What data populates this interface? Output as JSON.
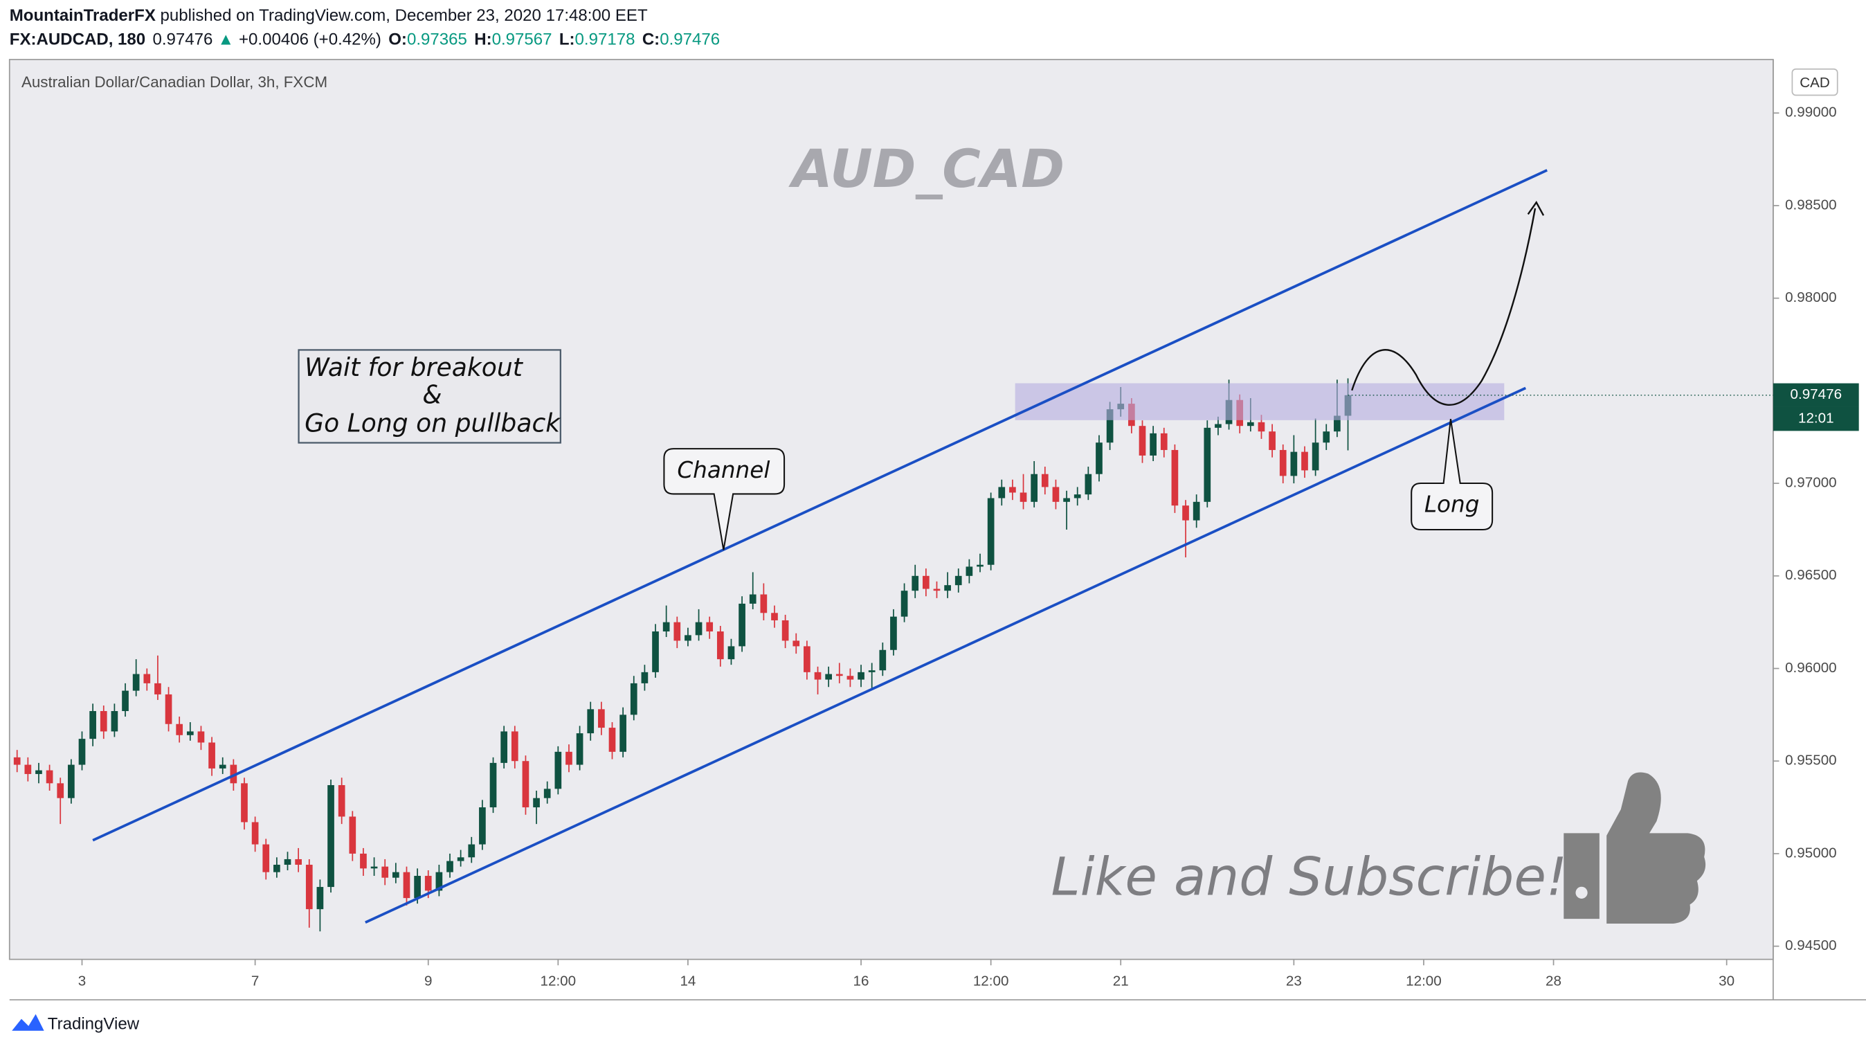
{
  "header": {
    "author": "MountainTraderFX",
    "published": " published on TradingView.com, December 23, 2020 17:48:00 EET",
    "symbol": "FX:AUDCAD, 180",
    "arrow": "▲",
    "change": "+0.00406 (+0.42%)",
    "o": "O:",
    "h": "H:",
    "l": "L:",
    "c": "C:"
  },
  "chart_data": {
    "type": "candlestick",
    "title": "Australian Dollar/Canadian Dollar, 3h, FXCM",
    "currency": "CAD",
    "countdown": "12:01",
    "up_color": "#0f5241",
    "down_color": "#d9363e",
    "grid": false,
    "xlim": [
      -0.7,
      162.3
    ],
    "xticks": [
      {
        "value": 6,
        "label": "3"
      },
      {
        "value": 22,
        "label": "7"
      },
      {
        "value": 38,
        "label": "9"
      },
      {
        "value": 50,
        "label": "12:00"
      },
      {
        "value": 62,
        "label": "14"
      },
      {
        "value": 78,
        "label": "16"
      },
      {
        "value": 90,
        "label": "12:00"
      },
      {
        "value": 102,
        "label": "21"
      },
      {
        "value": 118,
        "label": "23"
      },
      {
        "value": 130,
        "label": "12:00"
      },
      {
        "value": 142,
        "label": "28"
      },
      {
        "value": 158,
        "label": "30"
      }
    ],
    "ylim": [
      0.94429,
      0.99289
    ],
    "yticks": [
      {
        "value": 0.945,
        "label": "0.94500"
      },
      {
        "value": 0.95,
        "label": "0.95000"
      },
      {
        "value": 0.955,
        "label": "0.95500"
      },
      {
        "value": 0.96,
        "label": "0.96000"
      },
      {
        "value": 0.965,
        "label": "0.96500"
      },
      {
        "value": 0.97,
        "label": "0.97000"
      },
      {
        "value": 0.975,
        "label": "0.97500"
      },
      {
        "value": 0.98,
        "label": "0.98000"
      },
      {
        "value": 0.985,
        "label": "0.98500"
      },
      {
        "value": 0.99,
        "label": "0.99000"
      }
    ],
    "x": [
      0,
      1,
      2,
      3,
      4,
      5,
      6,
      7,
      8,
      9,
      10,
      11,
      12,
      13,
      14,
      15,
      16,
      17,
      18,
      19,
      20,
      21,
      22,
      23,
      24,
      25,
      26,
      27,
      28,
      29,
      30,
      31,
      32,
      33,
      34,
      35,
      36,
      37,
      38,
      39,
      40,
      41,
      42,
      43,
      44,
      45,
      46,
      47,
      48,
      49,
      50,
      51,
      52,
      53,
      54,
      55,
      56,
      57,
      58,
      59,
      60,
      61,
      62,
      63,
      64,
      65,
      66,
      67,
      68,
      69,
      70,
      71,
      72,
      73,
      74,
      75,
      76,
      77,
      78,
      79,
      80,
      81,
      82,
      83,
      84,
      85,
      86,
      87,
      88,
      89,
      90,
      91,
      92,
      93,
      94,
      95,
      96,
      97,
      98,
      99,
      100,
      101,
      102,
      103,
      104,
      105,
      106,
      107,
      108,
      109,
      110,
      111,
      112,
      113,
      114,
      115,
      116,
      117,
      118,
      119,
      120,
      121,
      122,
      123
    ],
    "open": [
      0.9552,
      0.9548,
      0.9543,
      0.9545,
      0.9538,
      0.953,
      0.9548,
      0.9562,
      0.9577,
      0.9566,
      0.9577,
      0.9588,
      0.9597,
      0.9592,
      0.9586,
      0.957,
      0.9564,
      0.9566,
      0.956,
      0.9546,
      0.9548,
      0.9538,
      0.9517,
      0.9505,
      0.949,
      0.9494,
      0.9497,
      0.9494,
      0.947,
      0.9482,
      0.9537,
      0.952,
      0.95,
      0.9492,
      0.9493,
      0.9487,
      0.949,
      0.9476,
      0.9488,
      0.948,
      0.949,
      0.9496,
      0.9498,
      0.9505,
      0.9525,
      0.9549,
      0.9566,
      0.955,
      0.9525,
      0.953,
      0.9535,
      0.9555,
      0.9548,
      0.9565,
      0.9578,
      0.9568,
      0.9555,
      0.9575,
      0.9592,
      0.9598,
      0.962,
      0.9625,
      0.9615,
      0.9618,
      0.9625,
      0.962,
      0.9605,
      0.9612,
      0.9635,
      0.964,
      0.963,
      0.9626,
      0.9615,
      0.9612,
      0.9598,
      0.9594,
      0.9597,
      0.9596,
      0.9594,
      0.9598,
      0.9599,
      0.961,
      0.9628,
      0.9642,
      0.965,
      0.9643,
      0.9642,
      0.9645,
      0.965,
      0.9655,
      0.9656,
      0.9692,
      0.9698,
      0.9695,
      0.969,
      0.9705,
      0.9698,
      0.969,
      0.9692,
      0.9694,
      0.9705,
      0.9722,
      0.974,
      0.9743,
      0.9731,
      0.9715,
      0.9727,
      0.9718,
      0.9688,
      0.968,
      0.969,
      0.973,
      0.9732,
      0.9745,
      0.9731,
      0.9733,
      0.9728,
      0.9718,
      0.9704,
      0.9717,
      0.9707,
      0.9722,
      0.9728,
      0.97365
    ],
    "high": [
      0.9556,
      0.9552,
      0.9549,
      0.9548,
      0.9541,
      0.9551,
      0.9566,
      0.9581,
      0.958,
      0.9581,
      0.9592,
      0.9605,
      0.96,
      0.9607,
      0.959,
      0.9574,
      0.9571,
      0.9569,
      0.9563,
      0.9552,
      0.9551,
      0.9541,
      0.952,
      0.9508,
      0.9498,
      0.9501,
      0.9503,
      0.9497,
      0.9486,
      0.954,
      0.9541,
      0.9523,
      0.9503,
      0.9498,
      0.9497,
      0.9495,
      0.9493,
      0.9492,
      0.9491,
      0.9494,
      0.95,
      0.9502,
      0.9509,
      0.9529,
      0.9552,
      0.9569,
      0.9569,
      0.9553,
      0.9534,
      0.9539,
      0.9558,
      0.9559,
      0.9569,
      0.9582,
      0.9582,
      0.9571,
      0.9579,
      0.9596,
      0.9602,
      0.9624,
      0.9634,
      0.9628,
      0.9622,
      0.9632,
      0.9628,
      0.9623,
      0.9616,
      0.9639,
      0.9652,
      0.9646,
      0.9634,
      0.9629,
      0.9619,
      0.9615,
      0.9601,
      0.9601,
      0.9603,
      0.96,
      0.9602,
      0.9603,
      0.9614,
      0.9632,
      0.9646,
      0.9656,
      0.9654,
      0.9647,
      0.9652,
      0.9654,
      0.9659,
      0.9662,
      0.9695,
      0.9702,
      0.9702,
      0.9705,
      0.9712,
      0.9709,
      0.9702,
      0.9696,
      0.9698,
      0.9709,
      0.9726,
      0.9744,
      0.9752,
      0.9746,
      0.9734,
      0.9731,
      0.973,
      0.9721,
      0.9691,
      0.9694,
      0.9734,
      0.9736,
      0.9756,
      0.9748,
      0.9746,
      0.9737,
      0.9732,
      0.9721,
      0.9726,
      0.972,
      0.9735,
      0.9732,
      0.9756,
      0.97567
    ],
    "low": [
      0.9544,
      0.9539,
      0.9538,
      0.9534,
      0.9516,
      0.9527,
      0.9545,
      0.9558,
      0.9562,
      0.9563,
      0.9574,
      0.9585,
      0.9588,
      0.9583,
      0.9566,
      0.956,
      0.9561,
      0.9556,
      0.9542,
      0.9543,
      0.9534,
      0.9513,
      0.9501,
      0.9486,
      0.9487,
      0.9491,
      0.949,
      0.946,
      0.9458,
      0.9479,
      0.9516,
      0.9496,
      0.9488,
      0.9488,
      0.9483,
      0.9484,
      0.9472,
      0.9473,
      0.9476,
      0.9477,
      0.9487,
      0.9493,
      0.9495,
      0.9502,
      0.9522,
      0.9546,
      0.9546,
      0.9521,
      0.9516,
      0.9527,
      0.9532,
      0.9544,
      0.9545,
      0.9561,
      0.9564,
      0.9551,
      0.9552,
      0.9572,
      0.9588,
      0.9595,
      0.9617,
      0.9611,
      0.9612,
      0.9615,
      0.9616,
      0.9601,
      0.9602,
      0.9609,
      0.9632,
      0.9626,
      0.9622,
      0.9611,
      0.9608,
      0.9594,
      0.9586,
      0.959,
      0.9592,
      0.959,
      0.959,
      0.9589,
      0.9596,
      0.9607,
      0.9625,
      0.9638,
      0.9639,
      0.9638,
      0.9638,
      0.9641,
      0.9646,
      0.9652,
      0.9653,
      0.9688,
      0.9691,
      0.9686,
      0.9687,
      0.9694,
      0.9686,
      0.9675,
      0.9688,
      0.9691,
      0.9701,
      0.9718,
      0.9736,
      0.9727,
      0.9711,
      0.9712,
      0.9714,
      0.9684,
      0.966,
      0.9676,
      0.9687,
      0.9726,
      0.9729,
      0.9727,
      0.9728,
      0.9724,
      0.9714,
      0.97,
      0.97,
      0.9703,
      0.9704,
      0.9718,
      0.9725,
      0.97178
    ],
    "close": [
      0.9548,
      0.9543,
      0.9545,
      0.9538,
      0.953,
      0.9548,
      0.9562,
      0.9577,
      0.9566,
      0.9577,
      0.9588,
      0.9597,
      0.9592,
      0.9586,
      0.957,
      0.9564,
      0.9566,
      0.956,
      0.9546,
      0.9548,
      0.9538,
      0.9517,
      0.9505,
      0.949,
      0.9494,
      0.9497,
      0.9494,
      0.947,
      0.9482,
      0.9537,
      0.952,
      0.95,
      0.9492,
      0.9493,
      0.9487,
      0.949,
      0.9476,
      0.9488,
      0.948,
      0.949,
      0.9496,
      0.9498,
      0.9505,
      0.9525,
      0.9549,
      0.9566,
      0.955,
      0.9525,
      0.953,
      0.9535,
      0.9555,
      0.9548,
      0.9565,
      0.9578,
      0.9568,
      0.9555,
      0.9575,
      0.9592,
      0.9598,
      0.962,
      0.9625,
      0.9615,
      0.9618,
      0.9625,
      0.962,
      0.9605,
      0.9612,
      0.9635,
      0.964,
      0.963,
      0.9626,
      0.9615,
      0.9612,
      0.9598,
      0.9594,
      0.9597,
      0.9596,
      0.9594,
      0.9598,
      0.9599,
      0.961,
      0.9628,
      0.9642,
      0.965,
      0.9643,
      0.9642,
      0.9645,
      0.965,
      0.9655,
      0.9656,
      0.9692,
      0.9698,
      0.9695,
      0.969,
      0.9705,
      0.9698,
      0.969,
      0.9692,
      0.9694,
      0.9705,
      0.9722,
      0.974,
      0.9743,
      0.9731,
      0.9715,
      0.9727,
      0.9718,
      0.9688,
      0.968,
      0.969,
      0.973,
      0.9732,
      0.9745,
      0.9731,
      0.9733,
      0.9728,
      0.9718,
      0.9704,
      0.9717,
      0.9707,
      0.9722,
      0.9728,
      0.97365,
      0.97476
    ],
    "last_index": 123
  },
  "annotations": {
    "watermark": "AUD_CAD",
    "note_line1": "Wait for breakout",
    "note_line2": "&",
    "note_line3": "Go Long on pullback",
    "channel": "Channel",
    "long": "Long",
    "subscribe": "Like and Subscribe!",
    "brand": "TradingView"
  }
}
